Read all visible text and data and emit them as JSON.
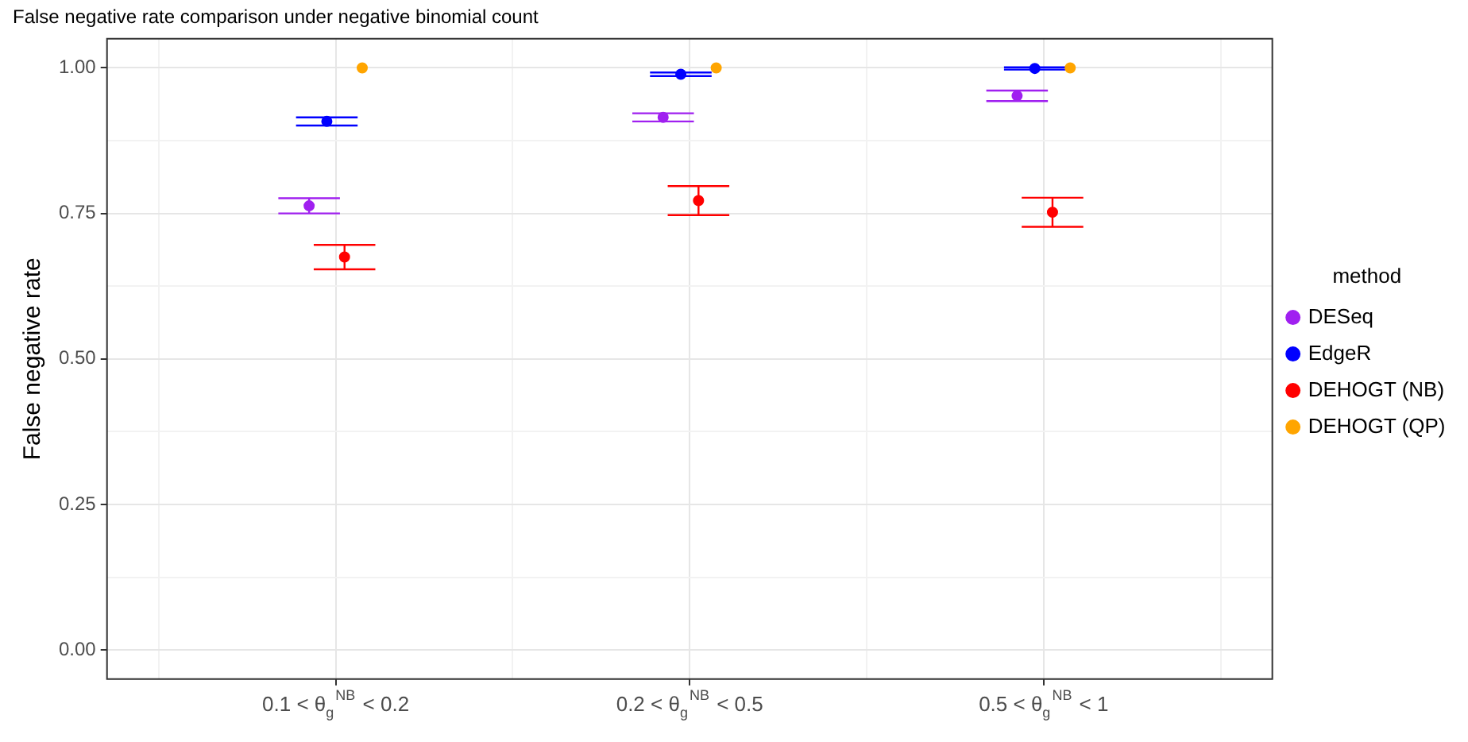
{
  "chart_data": {
    "type": "scatter",
    "title": "False negative rate comparison under negative binomial count",
    "ylabel": "False negative rate",
    "legend_title": "method",
    "categories": [
      "0.1 < θ$_{g}$$^{NB}$ < 0.2",
      "0.2 < θ$_{g}$$^{NB}$ < 0.5",
      "0.5 < θ$_{g}$$^{NB}$ < 1"
    ],
    "series": [
      {
        "name": "DESeq",
        "color": "#a020f0",
        "values": [
          0.763,
          0.915,
          0.952
        ],
        "errors": [
          0.013,
          0.007,
          0.009
        ]
      },
      {
        "name": "EdgeR",
        "color": "#0000ff",
        "values": [
          0.908,
          0.989,
          0.999
        ],
        "errors": [
          0.007,
          0.003,
          0.002
        ]
      },
      {
        "name": "DEHOGT (NB)",
        "color": "#ff0000",
        "values": [
          0.675,
          0.772,
          0.752
        ],
        "errors": [
          0.021,
          0.025,
          0.025
        ]
      },
      {
        "name": "DEHOGT (QP)",
        "color": "#ffa500",
        "values": [
          1.0,
          1.0,
          1.0
        ],
        "errors": [
          null,
          null,
          null
        ]
      }
    ],
    "ylim": [
      -0.05,
      1.05
    ],
    "yticks": [
      {
        "value": 0,
        "label": "0.00"
      },
      {
        "value": 0.25,
        "label": "0.25"
      },
      {
        "value": 0.5,
        "label": "0.50"
      },
      {
        "value": 0.75,
        "label": "0.75"
      },
      {
        "value": 1,
        "label": "1.00"
      }
    ],
    "grid": true,
    "legend": "right",
    "marker": "circle"
  }
}
